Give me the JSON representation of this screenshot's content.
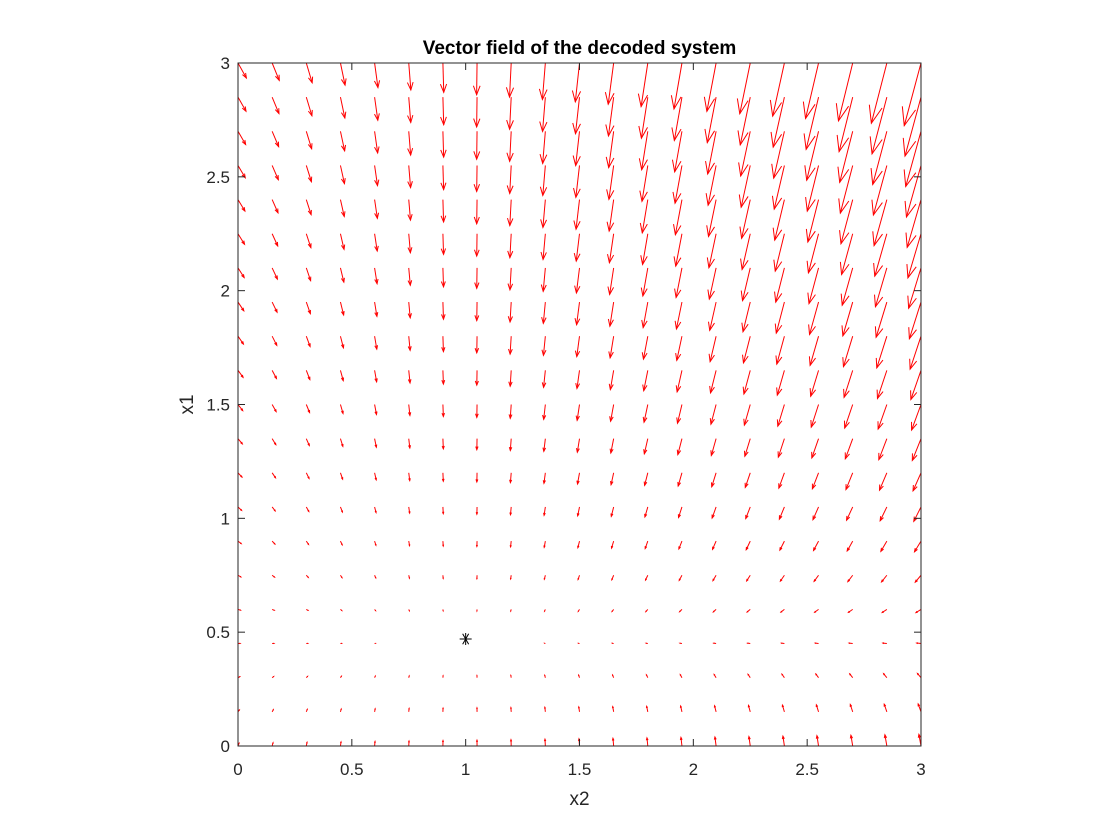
{
  "chart_data": {
    "type": "quiver",
    "title": "Vector field of the decoded system",
    "xlabel": "x2",
    "ylabel": "x1",
    "xlim": [
      0,
      3
    ],
    "ylim": [
      0,
      3
    ],
    "xticks": [
      0,
      0.5,
      1,
      1.5,
      2,
      2.5,
      3
    ],
    "xtick_labels": [
      "0",
      "0.5",
      "1",
      "1.5",
      "2",
      "2.5",
      "3"
    ],
    "yticks": [
      0,
      0.5,
      1,
      1.5,
      2,
      2.5,
      3
    ],
    "ytick_labels": [
      "0",
      "0.5",
      "1",
      "1.5",
      "2",
      "2.5",
      "3"
    ],
    "grid": false,
    "box": true,
    "grid_x_start": 0,
    "grid_x_end": 3,
    "grid_x_count": 21,
    "grid_y_start": 0,
    "grid_y_end": 3,
    "grid_y_count": 21,
    "field_center": [
      1.0,
      0.47
    ],
    "arrow_color": "#ff0000",
    "equilibrium": {
      "x": 1.0,
      "y": 0.47,
      "marker": "asterisk",
      "color": "#000000"
    }
  }
}
